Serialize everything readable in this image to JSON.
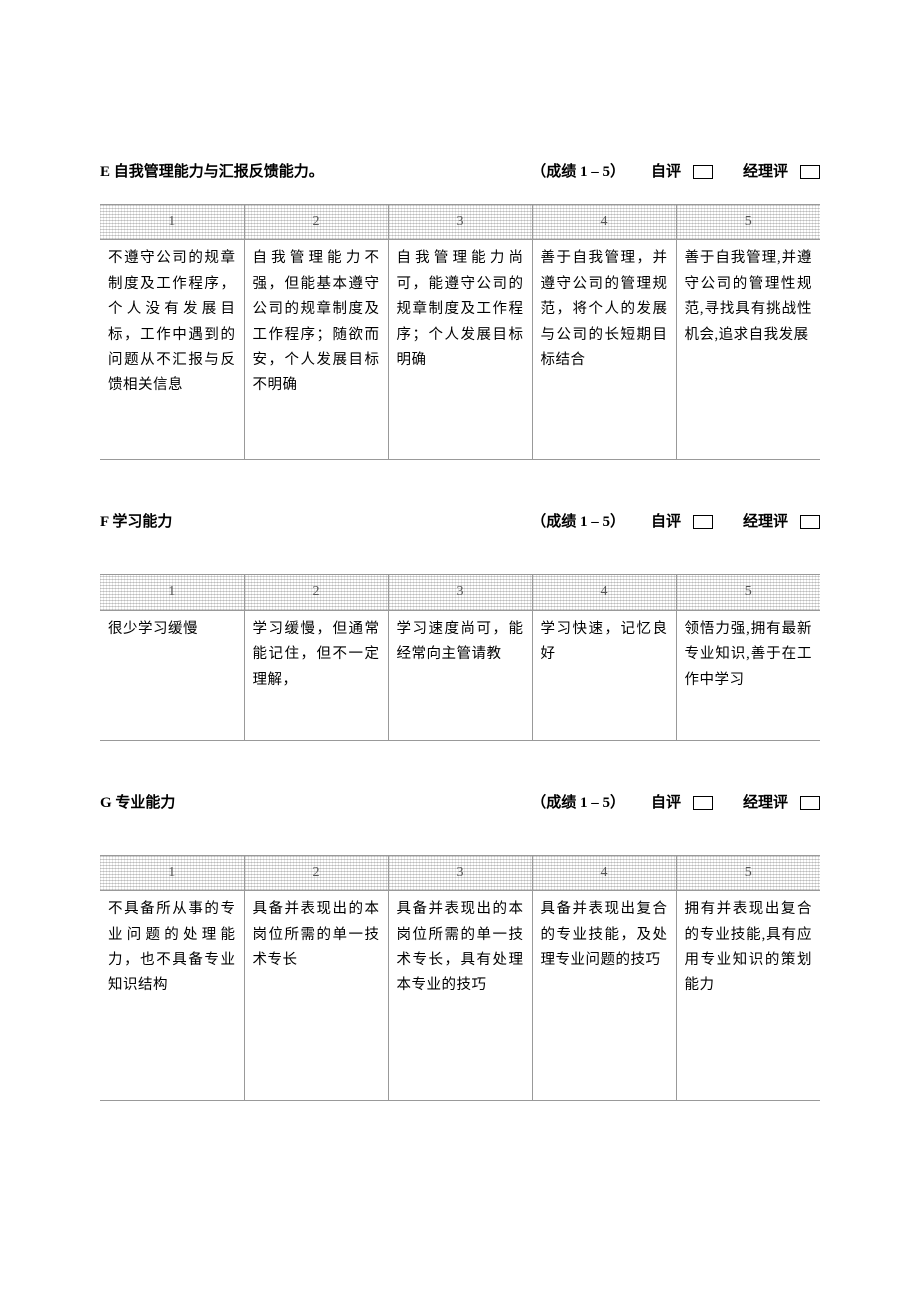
{
  "sections": [
    {
      "id": "E",
      "title": "E 自我管理能力与汇报反馈能力。",
      "scoreRange": "（成绩 1 – 5）",
      "selfLabel": "自评",
      "managerLabel": "经理评",
      "rowClass": "row-tall",
      "headers": [
        "1",
        "2",
        "3",
        "4",
        "5"
      ],
      "cells": [
        "不遵守公司的规章制度及工作程序，个人没有发展目标，工作中遇到的问题从不汇报与反馈相关信息",
        "自我管理能力不强，但能基本遵守公司的规章制度及工作程序；随欲而安，个人发展目标不明确",
        "自我管理能力尚可，能遵守公司的规章制度及工作程序；个人发展目标明确",
        "善于自我管理，并遵守公司的管理规范，将个人的发展与公司的长短期目标结合",
        "善于自我管理,并遵守公司的管理性规范,寻找具有挑战性机会,追求自我发展"
      ]
    },
    {
      "id": "F",
      "title": "F 学习能力",
      "scoreRange": "（成绩 1 – 5）",
      "selfLabel": "自评",
      "managerLabel": "经理评",
      "rowClass": "row-med",
      "extraClass": "gap-above",
      "headers": [
        "1",
        "2",
        "3",
        "4",
        "5"
      ],
      "cells": [
        "很少学习缓慢",
        "学习缓慢，但通常能记住，但不一定理解，",
        "学习速度尚可，能经常向主管请教",
        "学习快速，记忆良好",
        "领悟力强,拥有最新专业知识,善于在工作中学习"
      ]
    },
    {
      "id": "G",
      "title": "G 专业能力",
      "scoreRange": "（成绩 1 – 5）",
      "selfLabel": "自评",
      "managerLabel": "经理评",
      "rowClass": "row-bigger",
      "extraClass": "gap-above",
      "headers": [
        "1",
        "2",
        "3",
        "4",
        "5"
      ],
      "cells": [
        "不具备所从事的专业问题的处理能力，也不具备专业知识结构",
        "具备并表现出的本岗位所需的单一技术专长",
        "具备并表现出的本岗位所需的单一技术专长，具有处理本专业的技巧",
        "具备并表现出复合的专业技能，及处理专业问题的技巧",
        "拥有并表现出复合的专业技能,具有应用专业知识的策划能力"
      ]
    }
  ]
}
